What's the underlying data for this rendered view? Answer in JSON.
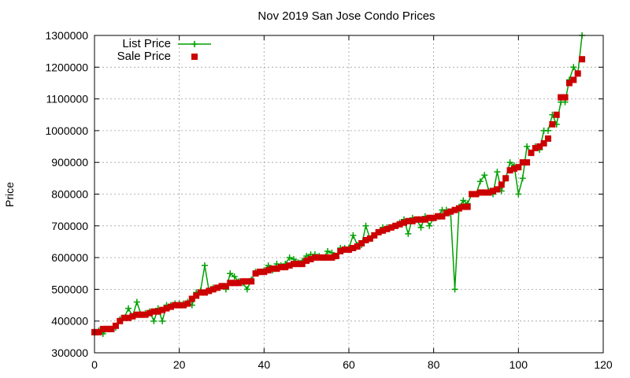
{
  "chart_data": {
    "type": "line",
    "title": "Nov 2019 San Jose Condo Prices",
    "xlabel": "",
    "ylabel": "Price",
    "xlim": [
      0,
      120
    ],
    "ylim": [
      300000,
      1300000
    ],
    "xticks": [
      0,
      20,
      40,
      60,
      80,
      100,
      120
    ],
    "yticks": [
      300000,
      400000,
      500000,
      600000,
      700000,
      800000,
      900000,
      1000000,
      1100000,
      1200000,
      1300000
    ],
    "grid": true,
    "legend_position": "top-left",
    "series": [
      {
        "name": "List Price",
        "style": "line+plus",
        "color": "#00a000",
        "x": [
          0,
          1,
          2,
          3,
          4,
          5,
          6,
          7,
          8,
          9,
          10,
          11,
          12,
          13,
          14,
          15,
          16,
          17,
          18,
          19,
          20,
          21,
          22,
          23,
          24,
          25,
          26,
          27,
          28,
          29,
          30,
          31,
          32,
          33,
          34,
          35,
          36,
          37,
          38,
          39,
          40,
          41,
          42,
          43,
          44,
          45,
          46,
          47,
          48,
          49,
          50,
          51,
          52,
          53,
          54,
          55,
          56,
          57,
          58,
          59,
          60,
          61,
          62,
          63,
          64,
          65,
          66,
          67,
          68,
          69,
          70,
          71,
          72,
          73,
          74,
          75,
          76,
          77,
          78,
          79,
          80,
          81,
          82,
          83,
          84,
          85,
          86,
          87,
          88,
          89,
          90,
          91,
          92,
          93,
          94,
          95,
          96,
          97,
          98,
          99,
          100,
          101,
          102,
          103,
          104,
          105,
          106,
          107,
          108,
          109,
          110,
          111,
          112,
          113,
          114,
          115
        ],
        "y": [
          365000,
          370000,
          360000,
          375000,
          375000,
          380000,
          405000,
          410000,
          440000,
          415000,
          460000,
          420000,
          425000,
          430000,
          400000,
          440000,
          400000,
          450000,
          450000,
          455000,
          455000,
          455000,
          460000,
          450000,
          490000,
          495000,
          575000,
          495000,
          505000,
          505000,
          510000,
          500000,
          550000,
          540000,
          525000,
          520000,
          500000,
          530000,
          555000,
          555000,
          560000,
          575000,
          560000,
          580000,
          575000,
          580000,
          600000,
          595000,
          585000,
          590000,
          605000,
          610000,
          610000,
          605000,
          600000,
          620000,
          615000,
          605000,
          630000,
          630000,
          630000,
          670000,
          640000,
          640000,
          700000,
          660000,
          670000,
          680000,
          695000,
          695000,
          695000,
          700000,
          710000,
          720000,
          675000,
          725000,
          720000,
          695000,
          730000,
          700000,
          725000,
          730000,
          750000,
          750000,
          740000,
          500000,
          760000,
          780000,
          770000,
          800000,
          800000,
          840000,
          860000,
          810000,
          800000,
          870000,
          810000,
          850000,
          900000,
          890000,
          800000,
          850000,
          950000,
          930000,
          950000,
          940000,
          1000000,
          1000000,
          1050000,
          1020000,
          1090000,
          1090000,
          1160000,
          1200000,
          1180000,
          1300000
        ]
      },
      {
        "name": "Sale Price",
        "style": "squares",
        "color": "#cc0000",
        "x": [
          0,
          1,
          2,
          3,
          4,
          5,
          6,
          7,
          8,
          9,
          10,
          11,
          12,
          13,
          14,
          15,
          16,
          17,
          18,
          19,
          20,
          21,
          22,
          23,
          24,
          25,
          26,
          27,
          28,
          29,
          30,
          31,
          32,
          33,
          34,
          35,
          36,
          37,
          38,
          39,
          40,
          41,
          42,
          43,
          44,
          45,
          46,
          47,
          48,
          49,
          50,
          51,
          52,
          53,
          54,
          55,
          56,
          57,
          58,
          59,
          60,
          61,
          62,
          63,
          64,
          65,
          66,
          67,
          68,
          69,
          70,
          71,
          72,
          73,
          74,
          75,
          76,
          77,
          78,
          79,
          80,
          81,
          82,
          83,
          84,
          85,
          86,
          87,
          88,
          89,
          90,
          91,
          92,
          93,
          94,
          95,
          96,
          97,
          98,
          99,
          100,
          101,
          102,
          103,
          104,
          105,
          106,
          107,
          108,
          109,
          110,
          111,
          112,
          113,
          114,
          115
        ],
        "y": [
          365000,
          365000,
          375000,
          375000,
          375000,
          385000,
          400000,
          410000,
          410000,
          415000,
          420000,
          420000,
          420000,
          425000,
          430000,
          430000,
          435000,
          440000,
          445000,
          450000,
          450000,
          450000,
          455000,
          470000,
          480000,
          490000,
          490000,
          495000,
          500000,
          505000,
          510000,
          510000,
          520000,
          520000,
          520000,
          525000,
          525000,
          525000,
          550000,
          555000,
          555000,
          560000,
          565000,
          565000,
          570000,
          570000,
          575000,
          580000,
          580000,
          580000,
          590000,
          595000,
          600000,
          600000,
          600000,
          600000,
          600000,
          605000,
          620000,
          625000,
          625000,
          630000,
          635000,
          645000,
          655000,
          660000,
          670000,
          680000,
          685000,
          690000,
          695000,
          700000,
          705000,
          710000,
          715000,
          715000,
          720000,
          720000,
          720000,
          725000,
          725000,
          730000,
          730000,
          740000,
          745000,
          750000,
          755000,
          760000,
          760000,
          800000,
          800000,
          805000,
          805000,
          805000,
          810000,
          815000,
          830000,
          850000,
          875000,
          880000,
          885000,
          900000,
          900000,
          930000,
          945000,
          950000,
          960000,
          975000,
          1020000,
          1050000,
          1105000,
          1105000,
          1150000,
          1160000,
          1180000,
          1225000
        ]
      }
    ]
  }
}
